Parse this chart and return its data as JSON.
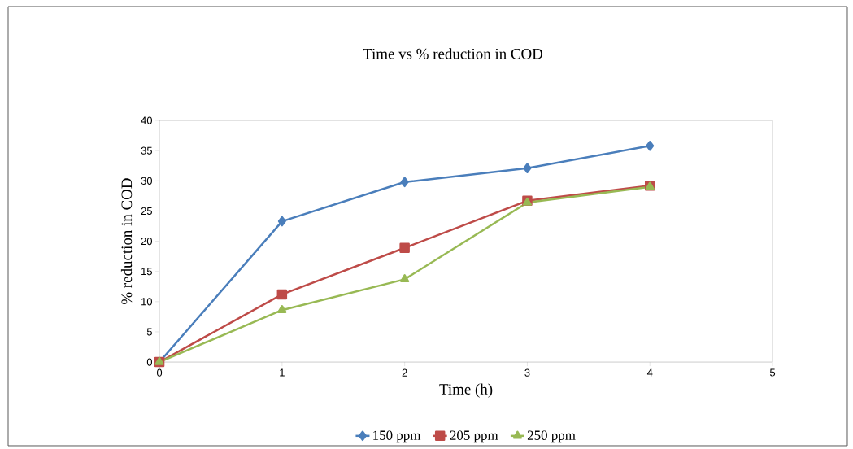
{
  "chart_data": {
    "type": "line",
    "title": "Time vs % reduction in COD",
    "xlabel": "Time  (h)",
    "ylabel": "% reduction in COD",
    "x": [
      0,
      1,
      2,
      3,
      4
    ],
    "series": [
      {
        "name": "150 ppm",
        "color": "#4a7ebb",
        "marker": "diamond",
        "values": [
          0,
          23.3,
          29.8,
          32.1,
          35.8
        ]
      },
      {
        "name": "205 ppm",
        "color": "#be4b48",
        "marker": "square",
        "values": [
          0,
          11.2,
          18.9,
          26.7,
          29.2
        ]
      },
      {
        "name": "250 ppm",
        "color": "#98b954",
        "marker": "triangle",
        "values": [
          0,
          8.6,
          13.7,
          26.4,
          29.0
        ]
      }
    ],
    "xlim": [
      0,
      5
    ],
    "xticks": [
      0,
      1,
      2,
      3,
      4,
      5
    ],
    "ylim": [
      0,
      40
    ],
    "yticks": [
      0,
      5,
      10,
      15,
      20,
      25,
      30,
      35,
      40
    ],
    "grid": false,
    "legend": "bottom",
    "line_style": "solid"
  }
}
